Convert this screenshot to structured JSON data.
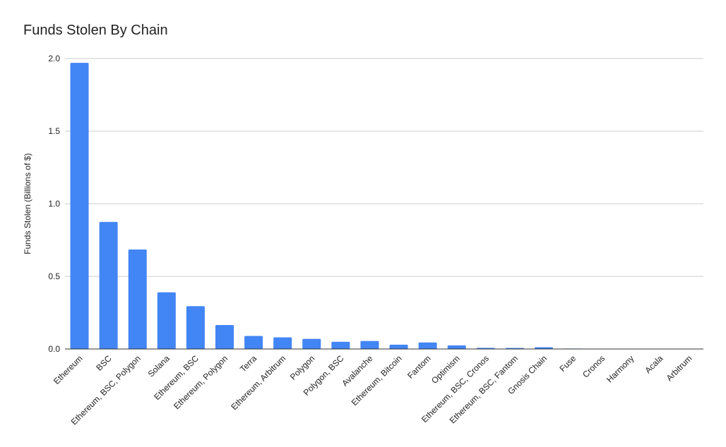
{
  "chart_data": {
    "type": "bar",
    "title": "Funds Stolen By Chain",
    "xlabel": "",
    "ylabel": "Funds Stolen (Billions of $)",
    "ylim": [
      0,
      2.0
    ],
    "yticks": [
      "0.0",
      "0.5",
      "1.0",
      "1.5",
      "2.0"
    ],
    "grid": true,
    "legend": "none",
    "bar_color": "#4285f4",
    "categories": [
      "Ethereum",
      "BSC",
      "Ethereum, BSC, Polygon",
      "Solana",
      "Ethereum, BSC",
      "Ethereum, Polygon",
      "Terra",
      "Ethereum, Arbitrum",
      "Polygon",
      "Polygon, BSC",
      "Avalanche",
      "Ethereum, Bitcoin",
      "Fantom",
      "Optimism",
      "Ethereum, BSC, Cronos",
      "Ethereum, BSC, Fantom",
      "Gnosis Chain",
      "Fuse",
      "Cronos",
      "Harmony",
      "Acala",
      "Arbitrum"
    ],
    "values": [
      1.97,
      0.875,
      0.685,
      0.39,
      0.295,
      0.165,
      0.09,
      0.08,
      0.07,
      0.05,
      0.055,
      0.03,
      0.045,
      0.025,
      0.008,
      0.007,
      0.012,
      0.003,
      0.002,
      0.001,
      0.001,
      0.001
    ]
  }
}
